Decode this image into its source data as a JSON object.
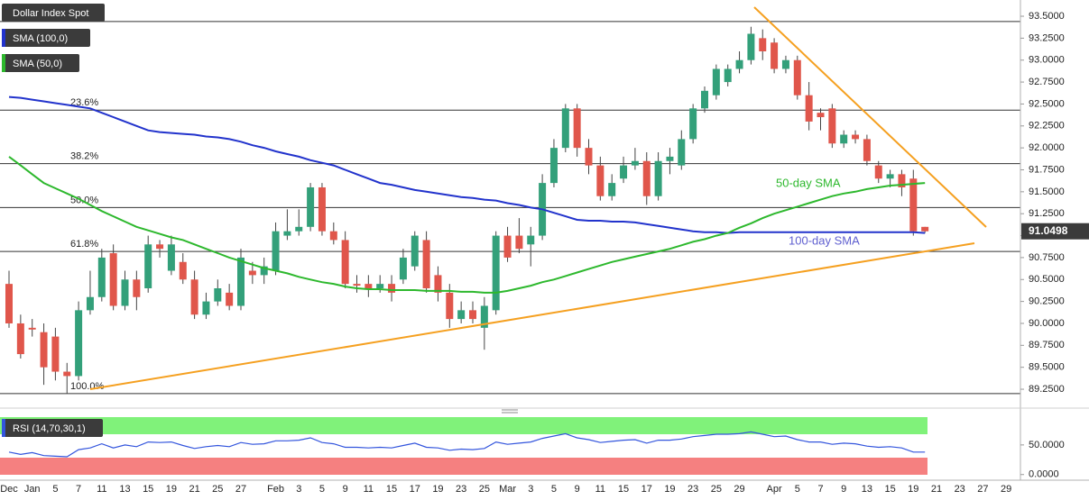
{
  "chart_data": [
    {
      "type": "candlestick",
      "title": "Dollar Index Spot",
      "up_color": "#33a07a",
      "down_color": "#e0564b",
      "categories": [
        "Dec",
        null,
        "Jan",
        null,
        "5",
        null,
        "7",
        null,
        "11",
        null,
        "13",
        null,
        "15",
        null,
        "19",
        null,
        "21",
        null,
        "25",
        null,
        "27",
        null,
        null,
        "Feb",
        null,
        "3",
        null,
        "5",
        null,
        "9",
        null,
        "11",
        null,
        "15",
        null,
        "17",
        null,
        "19",
        null,
        "23",
        null,
        "25",
        null,
        "Mar",
        null,
        "3",
        null,
        "5",
        null,
        "9",
        null,
        "11",
        null,
        "15",
        null,
        "17",
        null,
        "19",
        null,
        "23",
        null,
        "25",
        null,
        "29",
        null,
        null,
        "Apr",
        null,
        "5",
        null,
        "7",
        null,
        "9",
        null,
        "13",
        null,
        "15",
        null,
        "19",
        null,
        "21",
        null,
        "23",
        null,
        "27",
        null,
        "29"
      ],
      "open": [
        90.45,
        90.0,
        89.95,
        89.9,
        89.85,
        89.45,
        89.4,
        90.15,
        90.3,
        90.8,
        90.2,
        90.5,
        90.4,
        90.9,
        90.6,
        90.7,
        90.5,
        90.1,
        90.25,
        90.35,
        90.2,
        90.6,
        90.55,
        90.6,
        91.0,
        91.05,
        91.1,
        91.55,
        91.05,
        90.95,
        90.45,
        90.45,
        90.4,
        90.45,
        90.5,
        90.65,
        90.95,
        90.55,
        90.35,
        90.05,
        90.15,
        89.95,
        90.15,
        91.0,
        91.0,
        90.9,
        91.0,
        91.6,
        92.0,
        92.45,
        92.0,
        91.8,
        91.45,
        91.65,
        91.8,
        91.85,
        91.45,
        91.85,
        91.8,
        92.1,
        92.45,
        92.6,
        92.75,
        92.9,
        93.0,
        93.25,
        93.2,
        92.9,
        93.0,
        92.6,
        92.4,
        92.45,
        92.05,
        92.15,
        92.1,
        91.8,
        91.65,
        91.7,
        91.65,
        91.1,
        null,
        null,
        null,
        null,
        null,
        null,
        null
      ],
      "high": [
        90.6,
        90.1,
        90.05,
        90.0,
        89.95,
        89.55,
        90.25,
        90.6,
        90.85,
        90.9,
        90.6,
        90.6,
        91.0,
        90.95,
        91.0,
        90.8,
        90.6,
        90.35,
        90.5,
        90.45,
        90.85,
        90.7,
        90.75,
        91.15,
        91.3,
        91.3,
        91.6,
        91.6,
        91.15,
        91.05,
        90.55,
        90.55,
        90.55,
        90.55,
        90.85,
        91.05,
        91.05,
        90.65,
        90.45,
        90.25,
        90.25,
        90.3,
        91.05,
        91.1,
        91.2,
        91.1,
        91.7,
        92.1,
        92.5,
        92.5,
        92.1,
        91.9,
        91.7,
        91.9,
        92.0,
        91.95,
        91.95,
        92.0,
        92.2,
        92.5,
        92.7,
        92.95,
        92.95,
        93.1,
        93.38,
        93.35,
        93.25,
        93.05,
        93.05,
        92.75,
        92.45,
        92.5,
        92.2,
        92.2,
        92.15,
        91.85,
        91.75,
        91.75,
        91.75,
        91.1,
        null,
        null,
        null,
        null,
        null,
        null,
        null
      ],
      "low": [
        89.95,
        89.6,
        89.85,
        89.3,
        89.35,
        89.2,
        89.35,
        90.1,
        90.25,
        90.15,
        90.15,
        90.15,
        90.35,
        90.75,
        90.55,
        90.45,
        90.05,
        90.05,
        90.2,
        90.15,
        90.15,
        90.45,
        90.45,
        90.55,
        90.95,
        91.0,
        91.05,
        91.0,
        90.9,
        90.4,
        90.35,
        90.3,
        90.35,
        90.25,
        90.45,
        90.6,
        90.35,
        90.25,
        89.95,
        90.0,
        90.0,
        89.7,
        90.1,
        90.7,
        90.8,
        90.65,
        90.95,
        91.55,
        91.95,
        91.9,
        91.7,
        91.4,
        91.4,
        91.6,
        91.75,
        91.35,
        91.4,
        91.7,
        91.75,
        92.05,
        92.4,
        92.55,
        92.7,
        92.85,
        92.95,
        93.0,
        92.85,
        92.85,
        92.55,
        92.2,
        92.2,
        92.0,
        92.0,
        92.05,
        91.8,
        91.6,
        91.55,
        91.45,
        91.0,
        91.03,
        null,
        null,
        null,
        null,
        null,
        null,
        null
      ],
      "close": [
        90.0,
        89.65,
        89.93,
        89.5,
        89.45,
        89.4,
        90.15,
        90.3,
        90.75,
        90.2,
        90.5,
        90.3,
        90.9,
        90.85,
        90.9,
        90.5,
        90.1,
        90.25,
        90.4,
        90.2,
        90.75,
        90.55,
        90.65,
        91.05,
        91.05,
        91.1,
        91.55,
        91.05,
        90.95,
        90.45,
        90.43,
        90.4,
        90.45,
        90.35,
        90.75,
        91.0,
        90.4,
        90.35,
        90.05,
        90.15,
        90.05,
        90.2,
        91.0,
        90.75,
        90.85,
        91.0,
        91.6,
        92.0,
        92.45,
        92.0,
        91.8,
        91.45,
        91.6,
        91.8,
        91.85,
        91.45,
        91.85,
        91.9,
        92.1,
        92.45,
        92.65,
        92.9,
        92.9,
        93.0,
        93.3,
        93.1,
        92.9,
        93.0,
        92.6,
        92.3,
        92.35,
        92.05,
        92.15,
        92.1,
        91.85,
        91.65,
        91.7,
        91.55,
        91.05,
        91.0498,
        null,
        null,
        null,
        null,
        null,
        null,
        null
      ],
      "last_price_label": "91.0498",
      "series": [
        {
          "name": "SMA (100,0)",
          "color": "#2233cc",
          "values": [
            92.58,
            92.57,
            92.55,
            92.53,
            92.51,
            92.49,
            92.47,
            92.45,
            92.4,
            92.35,
            92.3,
            92.25,
            92.2,
            92.18,
            92.17,
            92.16,
            92.15,
            92.13,
            92.12,
            92.1,
            92.07,
            92.03,
            92.0,
            91.96,
            91.93,
            91.9,
            91.86,
            91.83,
            91.8,
            91.75,
            91.7,
            91.65,
            91.6,
            91.58,
            91.55,
            91.52,
            91.5,
            91.48,
            91.46,
            91.44,
            91.43,
            91.41,
            91.4,
            91.37,
            91.35,
            91.32,
            91.3,
            91.26,
            91.22,
            91.18,
            91.17,
            91.17,
            91.16,
            91.16,
            91.15,
            91.13,
            91.11,
            91.09,
            91.07,
            91.05,
            91.04,
            91.04,
            91.03,
            91.04,
            91.04,
            91.04,
            91.04,
            91.04,
            91.04,
            91.04,
            91.04,
            91.04,
            91.04,
            91.04,
            91.04,
            91.04,
            91.04,
            91.04,
            91.04,
            91.03,
            null,
            null,
            null,
            null,
            null,
            null,
            null
          ]
        },
        {
          "name": "SMA (50,0)",
          "color": "#2db82d",
          "values": [
            91.9,
            91.8,
            91.7,
            91.6,
            91.54,
            91.48,
            91.42,
            91.35,
            91.28,
            91.22,
            91.16,
            91.1,
            91.06,
            91.02,
            90.98,
            90.95,
            90.9,
            90.85,
            90.8,
            90.75,
            90.71,
            90.67,
            90.63,
            90.6,
            90.57,
            90.53,
            90.5,
            90.47,
            90.45,
            90.42,
            90.4,
            90.39,
            90.39,
            90.38,
            90.38,
            90.38,
            90.37,
            90.37,
            90.37,
            90.36,
            90.36,
            90.35,
            90.35,
            90.37,
            90.4,
            90.43,
            90.47,
            90.5,
            90.54,
            90.58,
            90.62,
            90.66,
            90.7,
            90.73,
            90.76,
            90.79,
            90.82,
            90.85,
            90.89,
            90.93,
            90.96,
            91.0,
            91.03,
            91.09,
            91.14,
            91.2,
            91.25,
            91.29,
            91.33,
            91.37,
            91.41,
            91.45,
            91.48,
            91.5,
            91.53,
            91.55,
            91.57,
            91.58,
            91.59,
            91.6,
            null,
            null,
            null,
            null,
            null,
            null,
            null
          ]
        }
      ],
      "levels": [
        {
          "value": 93.44
        },
        {
          "value": 92.43,
          "label": "23.6%"
        },
        {
          "value": 91.82,
          "label": "38.2%"
        },
        {
          "value": 91.32,
          "label": "50.0%"
        },
        {
          "value": 90.82,
          "label": "61.8%"
        },
        {
          "value": 89.2,
          "label": "100.0%"
        }
      ],
      "annotations": [
        "50-day SMA",
        "100-day SMA"
      ],
      "ylim": [
        89.045,
        93.685
      ],
      "yticks": [
        {
          "value": 89.25,
          "label": "89.2500"
        },
        {
          "value": 89.5,
          "label": "89.5000"
        },
        {
          "value": 89.75,
          "label": "89.7500"
        },
        {
          "value": 90.0,
          "label": "90.0000"
        },
        {
          "value": 90.25,
          "label": "90.2500"
        },
        {
          "value": 90.5,
          "label": "90.5000"
        },
        {
          "value": 90.75,
          "label": "90.7500"
        },
        {
          "value": 91.0,
          "label": "91.0000"
        },
        {
          "value": 91.25,
          "label": "91.2500"
        },
        {
          "value": 91.5,
          "label": "91.5000"
        },
        {
          "value": 91.75,
          "label": "91.7500"
        },
        {
          "value": 92.0,
          "label": "92.0000"
        },
        {
          "value": 92.25,
          "label": "92.2500"
        },
        {
          "value": 92.5,
          "label": "92.5000"
        },
        {
          "value": 92.75,
          "label": "92.7500"
        },
        {
          "value": 93.0,
          "label": "93.0000"
        },
        {
          "value": 93.25,
          "label": "93.2500"
        },
        {
          "value": 93.5,
          "label": "93.5000"
        }
      ]
    },
    {
      "type": "line",
      "title": "RSI (14,70,30,1)",
      "series": [
        {
          "color": "#3355dd",
          "values": [
            38,
            34,
            37,
            32,
            31,
            30,
            42,
            45,
            52,
            45,
            50,
            47,
            55,
            54,
            55,
            49,
            44,
            47,
            49,
            47,
            54,
            51,
            52,
            57,
            57,
            58,
            62,
            54,
            52,
            46,
            46,
            45,
            46,
            45,
            49,
            53,
            46,
            45,
            41,
            43,
            42,
            44,
            55,
            51,
            53,
            55,
            61,
            65,
            69,
            62,
            59,
            54,
            56,
            58,
            59,
            53,
            58,
            58,
            60,
            64,
            66,
            68,
            68,
            69,
            72,
            68,
            64,
            65,
            59,
            55,
            55,
            51,
            53,
            52,
            48,
            46,
            47,
            45,
            38,
            38,
            null,
            null,
            null,
            null,
            null,
            null,
            null
          ]
        }
      ],
      "ylim": [
        -8,
        100
      ],
      "yticks": [
        {
          "value": 50,
          "label": "50.0000"
        },
        {
          "value": 0,
          "label": "0.0000"
        }
      ]
    }
  ]
}
